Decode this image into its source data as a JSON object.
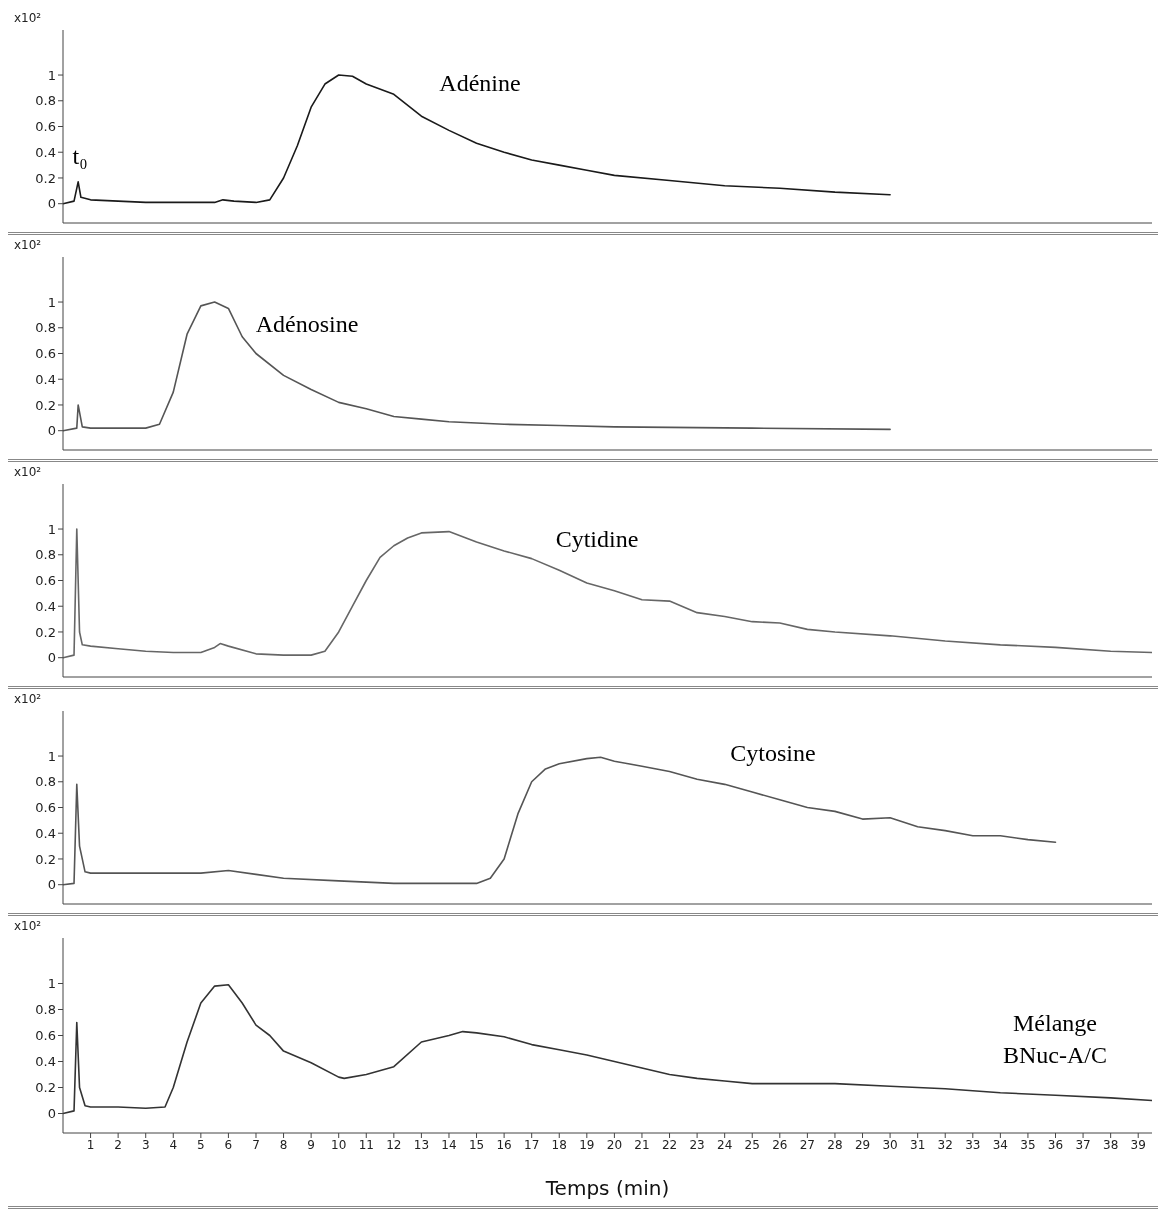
{
  "chart_data": [
    {
      "type": "line",
      "ylabel": "x10²",
      "tick_labels": "y",
      "xlim": [
        0,
        39.5
      ],
      "xticks": [
        1,
        2,
        3,
        4,
        5,
        6,
        7,
        8,
        9,
        10,
        11,
        12,
        13,
        14,
        15,
        16,
        17,
        18,
        19,
        20,
        21,
        22,
        23,
        24,
        25,
        26,
        27,
        28,
        29,
        30,
        31,
        32,
        33,
        34,
        35,
        36,
        37,
        38,
        39
      ],
      "ylim": [
        -0.15,
        1.35
      ],
      "yticks": [
        0,
        0.2,
        0.4,
        0.6,
        0.8,
        1
      ],
      "color": "#1a1a1a",
      "x": [
        0,
        0.4,
        0.55,
        0.65,
        1,
        2,
        3,
        5.5,
        5.8,
        6.2,
        7,
        7.5,
        8,
        8.5,
        9,
        9.5,
        10,
        10.5,
        11,
        12,
        13,
        14,
        15,
        16,
        17,
        18,
        19,
        20,
        22,
        24,
        26,
        28,
        30
      ],
      "values": [
        0,
        0.02,
        0.17,
        0.05,
        0.03,
        0.02,
        0.01,
        0.01,
        0.03,
        0.02,
        0.01,
        0.03,
        0.2,
        0.45,
        0.75,
        0.93,
        1.0,
        0.99,
        0.93,
        0.85,
        0.68,
        0.57,
        0.47,
        0.4,
        0.34,
        0.3,
        0.26,
        0.22,
        0.18,
        0.14,
        0.12,
        0.09,
        0.07
      ],
      "annotations": [
        "Adénine",
        "t₀"
      ]
    },
    {
      "type": "line",
      "ylabel": "x10²",
      "tick_labels": "y",
      "xlim": [
        0,
        39.5
      ],
      "xticks": [
        1,
        2,
        3,
        4,
        5,
        6,
        7,
        8,
        9,
        10,
        11,
        12,
        13,
        14,
        15,
        16,
        17,
        18,
        19,
        20,
        21,
        22,
        23,
        24,
        25,
        26,
        27,
        28,
        29,
        30,
        31,
        32,
        33,
        34,
        35,
        36,
        37,
        38,
        39
      ],
      "ylim": [
        -0.15,
        1.35
      ],
      "yticks": [
        0,
        0.2,
        0.4,
        0.6,
        0.8,
        1
      ],
      "color": "#555555",
      "x": [
        0,
        0.5,
        0.55,
        0.7,
        1,
        3,
        3.5,
        4,
        4.5,
        5,
        5.5,
        6,
        6.5,
        7,
        8,
        9,
        10,
        11,
        12,
        13,
        14,
        16,
        18,
        20,
        25,
        30
      ],
      "values": [
        0,
        0.02,
        0.2,
        0.03,
        0.02,
        0.02,
        0.05,
        0.3,
        0.75,
        0.97,
        1.0,
        0.95,
        0.73,
        0.6,
        0.43,
        0.32,
        0.22,
        0.17,
        0.11,
        0.09,
        0.07,
        0.05,
        0.04,
        0.03,
        0.02,
        0.01
      ],
      "annotations": [
        "Adénosine"
      ]
    },
    {
      "type": "line",
      "ylabel": "x10²",
      "tick_labels": "y",
      "xlim": [
        0,
        39.5
      ],
      "xticks": [
        1,
        2,
        3,
        4,
        5,
        6,
        7,
        8,
        9,
        10,
        11,
        12,
        13,
        14,
        15,
        16,
        17,
        18,
        19,
        20,
        21,
        22,
        23,
        24,
        25,
        26,
        27,
        28,
        29,
        30,
        31,
        32,
        33,
        34,
        35,
        36,
        37,
        38,
        39
      ],
      "ylim": [
        -0.15,
        1.35
      ],
      "yticks": [
        0,
        0.2,
        0.4,
        0.6,
        0.8,
        1
      ],
      "color": "#666666",
      "x": [
        0,
        0.4,
        0.5,
        0.6,
        0.7,
        1,
        2,
        3,
        4,
        5,
        5.5,
        5.7,
        6,
        7,
        8,
        9,
        9.5,
        10,
        10.5,
        11,
        11.5,
        12,
        12.5,
        13,
        14,
        15,
        16,
        17,
        18,
        19,
        20,
        21,
        22,
        23,
        24,
        25,
        26,
        27,
        28,
        30,
        32,
        34,
        36,
        38,
        39.5
      ],
      "values": [
        0,
        0.02,
        1.0,
        0.2,
        0.1,
        0.09,
        0.07,
        0.05,
        0.04,
        0.04,
        0.08,
        0.11,
        0.09,
        0.03,
        0.02,
        0.02,
        0.05,
        0.2,
        0.4,
        0.6,
        0.78,
        0.87,
        0.93,
        0.97,
        0.98,
        0.9,
        0.83,
        0.77,
        0.68,
        0.58,
        0.52,
        0.45,
        0.44,
        0.35,
        0.32,
        0.28,
        0.27,
        0.22,
        0.2,
        0.17,
        0.13,
        0.1,
        0.08,
        0.05,
        0.04
      ],
      "annotations": [
        "Cytidine"
      ]
    },
    {
      "type": "line",
      "ylabel": "x10²",
      "tick_labels": "y",
      "xlim": [
        0,
        39.5
      ],
      "xticks": [
        1,
        2,
        3,
        4,
        5,
        6,
        7,
        8,
        9,
        10,
        11,
        12,
        13,
        14,
        15,
        16,
        17,
        18,
        19,
        20,
        21,
        22,
        23,
        24,
        25,
        26,
        27,
        28,
        29,
        30,
        31,
        32,
        33,
        34,
        35,
        36,
        37,
        38,
        39
      ],
      "ylim": [
        -0.15,
        1.35
      ],
      "yticks": [
        0,
        0.2,
        0.4,
        0.6,
        0.8,
        1
      ],
      "color": "#555555",
      "x": [
        0,
        0.4,
        0.5,
        0.6,
        0.8,
        1,
        3,
        5,
        6,
        7,
        8,
        10,
        12,
        14,
        15,
        15.5,
        16,
        16.5,
        17,
        17.5,
        18,
        19,
        19.5,
        20,
        21,
        22,
        23,
        24,
        25,
        26,
        27,
        28,
        29,
        30,
        31,
        32,
        33,
        34,
        35,
        36
      ],
      "values": [
        0,
        0.01,
        0.78,
        0.3,
        0.1,
        0.09,
        0.09,
        0.09,
        0.11,
        0.08,
        0.05,
        0.03,
        0.01,
        0.01,
        0.01,
        0.05,
        0.2,
        0.55,
        0.8,
        0.9,
        0.94,
        0.98,
        0.99,
        0.96,
        0.92,
        0.88,
        0.82,
        0.78,
        0.72,
        0.66,
        0.6,
        0.57,
        0.51,
        0.52,
        0.45,
        0.42,
        0.38,
        0.38,
        0.35,
        0.33
      ],
      "annotations": [
        "Cytosine"
      ]
    },
    {
      "type": "line",
      "ylabel": "x10²",
      "xlabel": "Temps (min)",
      "xlim": [
        0,
        39.5
      ],
      "xticks": [
        1,
        2,
        3,
        4,
        5,
        6,
        7,
        8,
        9,
        10,
        11,
        12,
        13,
        14,
        15,
        16,
        17,
        18,
        19,
        20,
        21,
        22,
        23,
        24,
        25,
        26,
        27,
        28,
        29,
        30,
        31,
        32,
        33,
        34,
        35,
        36,
        37,
        38,
        39
      ],
      "ylim": [
        -0.15,
        1.35
      ],
      "yticks": [
        0,
        0.2,
        0.4,
        0.6,
        0.8,
        1
      ],
      "color": "#333333",
      "x": [
        0,
        0.4,
        0.5,
        0.6,
        0.8,
        1,
        2,
        3,
        3.7,
        4,
        4.5,
        5,
        5.5,
        6,
        6.5,
        7,
        7.5,
        8,
        9,
        10,
        10.2,
        11,
        12,
        13,
        14,
        14.5,
        15,
        16,
        17,
        18,
        19,
        20,
        21,
        22,
        23,
        24,
        25,
        28,
        30,
        32,
        34,
        36,
        38,
        39.5
      ],
      "values": [
        0,
        0.02,
        0.7,
        0.2,
        0.06,
        0.05,
        0.05,
        0.04,
        0.05,
        0.2,
        0.55,
        0.85,
        0.98,
        0.99,
        0.85,
        0.68,
        0.6,
        0.48,
        0.39,
        0.28,
        0.27,
        0.3,
        0.36,
        0.55,
        0.6,
        0.63,
        0.62,
        0.59,
        0.53,
        0.49,
        0.45,
        0.4,
        0.35,
        0.3,
        0.27,
        0.25,
        0.23,
        0.23,
        0.21,
        0.19,
        0.16,
        0.14,
        0.12,
        0.1
      ],
      "annotations": [
        "Mélange BNuc-A/C"
      ]
    }
  ]
}
